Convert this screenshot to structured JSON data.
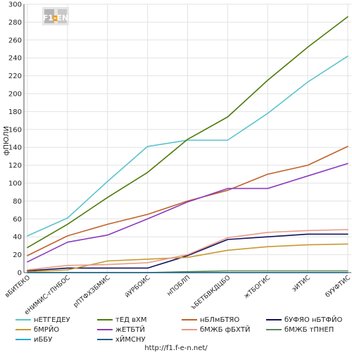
{
  "logo": {
    "text": "F1-EN"
  },
  "footer": {
    "url": "http://f1.f-e-n.net/"
  },
  "chart_data": {
    "type": "line",
    "title": "",
    "xlabel": "",
    "ylabel": "фПЮЛИ",
    "ylim": [
      0,
      300
    ],
    "yticks": [
      0,
      20,
      40,
      60,
      80,
      100,
      120,
      140,
      160,
      180,
      200,
      220,
      240,
      260,
      280,
      300
    ],
    "grid": true,
    "legend_position": "bottom",
    "categories": [
      "вБИТЕКО",
      "еНИМИС-гПНБОС",
      "рПТФХЗБМИС",
      "йУРБОИС",
      "нПОБЛП",
      "ъБЕТБВКДЦБО",
      "жТБОГИС",
      "эИТИС",
      "бУУФТИС"
    ],
    "series": [
      {
        "name": "нЕТГЕДЕУ",
        "color": "#5bc3cc",
        "values": [
          41,
          61,
          102,
          141,
          148,
          148,
          178,
          213,
          242
        ]
      },
      {
        "name": "тЕД вХМ",
        "color": "#4e7a0a",
        "values": [
          28,
          54,
          84,
          112,
          149,
          174,
          215,
          252,
          286
        ]
      },
      {
        "name": "нБЛмБТЯО",
        "color": "#c0622a",
        "values": [
          19,
          41,
          54,
          65,
          80,
          92,
          110,
          120,
          141
        ]
      },
      {
        "name": "бУФЯО нБТФЙО",
        "color": "#101060",
        "values": [
          2,
          5,
          5,
          5,
          19,
          37,
          40,
          43,
          43
        ]
      },
      {
        "name": "бМРЙО",
        "color": "#c79a30",
        "values": [
          1,
          3,
          13,
          15,
          17,
          25,
          29,
          31,
          32
        ]
      },
      {
        "name": "жЕТБТЙ",
        "color": "#8a3ac0",
        "values": [
          12,
          34,
          42,
          60,
          79,
          94,
          94,
          108,
          122
        ]
      },
      {
        "name": "бМЖБ фБХТЙ",
        "color": "#e89a84",
        "values": [
          3,
          8,
          9,
          11,
          20,
          39,
          45,
          47,
          48
        ]
      },
      {
        "name": "бМЖБ тПНЕП",
        "color": "#5a8a5a",
        "values": [
          0,
          0,
          0,
          0,
          1,
          2,
          2,
          2,
          2
        ]
      },
      {
        "name": "иББУ",
        "color": "#2aa8d8",
        "values": [
          0,
          0,
          0,
          0,
          0,
          0,
          0,
          0,
          0
        ]
      },
      {
        "name": "хЙМСНУ",
        "color": "#2a6080",
        "values": [
          0,
          0,
          0,
          0,
          0,
          0,
          0,
          0,
          0
        ]
      }
    ]
  }
}
